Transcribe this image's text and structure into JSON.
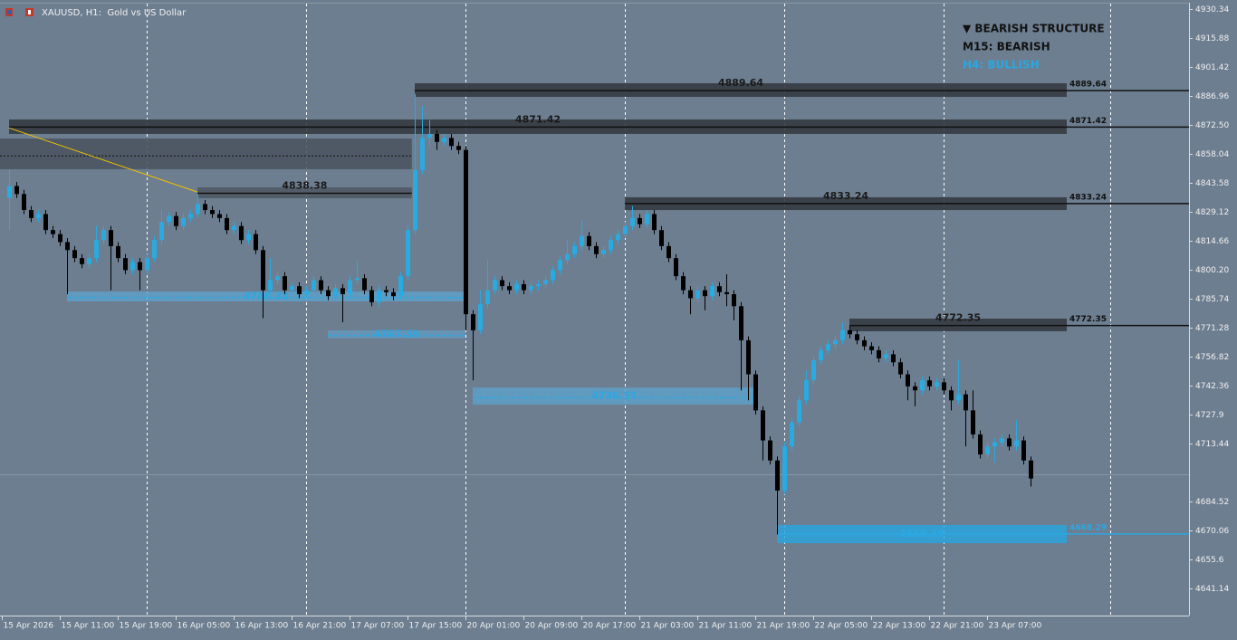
{
  "chart_data": {
    "type": "candlestick",
    "title": "XAUUSD, H1:  Gold vs US Dollar",
    "structure": [
      {
        "text": "▼ BEARISH STRUCTURE",
        "color": "#111111"
      },
      {
        "text": "M15: BEARISH",
        "color": "#111111"
      },
      {
        "text": "H4: BULLISH",
        "color": "#29a8e0"
      }
    ],
    "bull_color": "#29aae1",
    "bear_color": "#000000",
    "ylim": [
      4627.58,
      4933.05
    ],
    "yticks": [
      4930.34,
      4915.88,
      4901.42,
      4886.96,
      {
        "value": 4872.5,
        "label": "4872.50"
      },
      4858.04,
      4843.58,
      4829.12,
      4814.66,
      {
        "value": 4800.2,
        "label": "4800.20"
      },
      4785.74,
      4771.28,
      4756.82,
      4742.36,
      4727.9,
      4713.44,
      4684.52,
      4670.06,
      4655.6,
      4641.14
    ],
    "xlim": [
      -1.25,
      162.875
    ],
    "xticks": [
      {
        "value": -1,
        "label": "15 Apr 2026"
      },
      {
        "value": 7,
        "label": "15 Apr 11:00"
      },
      {
        "value": 15,
        "label": "15 Apr 19:00"
      },
      {
        "value": 23,
        "label": "16 Apr 05:00"
      },
      {
        "value": 31,
        "label": "16 Apr 13:00"
      },
      {
        "value": 39,
        "label": "16 Apr 21:00"
      },
      {
        "value": 47,
        "label": "17 Apr 07:00"
      },
      {
        "value": 55,
        "label": "17 Apr 15:00"
      },
      {
        "value": 63,
        "label": "20 Apr 01:00"
      },
      {
        "value": 71,
        "label": "20 Apr 09:00"
      },
      {
        "value": 79,
        "label": "20 Apr 17:00"
      },
      {
        "value": 87,
        "label": "21 Apr 03:00"
      },
      {
        "value": 95,
        "label": "21 Apr 11:00"
      },
      {
        "value": 103,
        "label": "21 Apr 19:00"
      },
      {
        "value": 111,
        "label": "22 Apr 05:00"
      },
      {
        "value": 119,
        "label": "22 Apr 13:00"
      },
      {
        "value": 127,
        "label": "22 Apr 21:00"
      },
      {
        "value": 135,
        "label": "23 Apr 07:00"
      }
    ],
    "vgrid": [
      19,
      41,
      63,
      85,
      107,
      129,
      152
    ],
    "current_price": 4698,
    "trendlines": [
      {
        "from": [
          0,
          4871
        ],
        "to": [
          26,
          4839
        ],
        "color": "#f2c200"
      }
    ],
    "zones": [
      {
        "price": 4857,
        "top": 4865.7,
        "bottom": 4850.4,
        "start": -1.25,
        "end": 55.6,
        "color": "#4a5561",
        "line": "dotted"
      },
      {
        "label": "4889.64",
        "price": 4889.64,
        "top": 4893.3,
        "bottom": 4886.5,
        "start": 56,
        "end": 146,
        "color": "#353b41",
        "extend": true
      },
      {
        "label": "4871.42",
        "price": 4871.42,
        "top": 4875.2,
        "bottom": 4868.0,
        "start": 0,
        "end": 146,
        "color": "#353b41",
        "extend": true
      },
      {
        "label": "4838.38",
        "price": 4838.38,
        "top": 4841.3,
        "bottom": 4835.9,
        "start": 26,
        "end": 55.6,
        "color": "#4f5a65"
      },
      {
        "label": "4833.24",
        "price": 4833.24,
        "top": 4836.4,
        "bottom": 4830.0,
        "start": 85,
        "end": 146,
        "color": "#353b41",
        "extend": true
      },
      {
        "label": "4772.35",
        "price": 4772.35,
        "top": 4775.8,
        "bottom": 4769.5,
        "start": 116,
        "end": 146,
        "color": "#353b41",
        "extend": true
      },
      {
        "label": "4786.33",
        "price": 4786.33,
        "top": 4789.3,
        "bottom": 4784.4,
        "start": 8,
        "end": 63,
        "color": "#5f9fc8",
        "blue": true
      },
      {
        "label": "4767.39",
        "price": 4767.39,
        "top": 4770.0,
        "bottom": 4766.0,
        "start": 44,
        "end": 63,
        "color": "#6696bb",
        "blue": true
      },
      {
        "label": "4736.33",
        "price": 4736.33,
        "top": 4741.4,
        "bottom": 4732.9,
        "start": 64,
        "end": 103,
        "color": "#5f9fc8",
        "blue": true
      },
      {
        "label": "4668.29",
        "price": 4668.29,
        "top": 4672.8,
        "bottom": 4663.7,
        "start": 106,
        "end": 146,
        "color": "#2ba3dc",
        "blue": true,
        "extend": true
      }
    ],
    "open": [
      4836,
      4842,
      4838,
      4830,
      4826,
      4828,
      4820,
      4818,
      4814,
      4810,
      4806,
      4803,
      4806,
      4815,
      4820,
      4812,
      4806,
      4800,
      4804,
      4800,
      4806,
      4815,
      4824,
      4827,
      4822,
      4826,
      4828,
      4833,
      4830,
      4828,
      4826,
      4820,
      4822,
      4815,
      4818,
      4810,
      4790,
      4795,
      4797,
      4790,
      4792,
      4788,
      4790,
      4795,
      4790,
      4787,
      4791,
      4788,
      4795,
      4796,
      4790,
      4784,
      4790,
      4789,
      4787,
      4797,
      4820,
      4850,
      4866,
      4868,
      4864,
      4866,
      4862,
      4860,
      4778,
      4770,
      4783,
      4790,
      4795,
      4792,
      4790,
      4793,
      4790,
      4792,
      4793,
      4795,
      4800,
      4805,
      4808,
      4812,
      4817,
      4812,
      4808,
      4810,
      4815,
      4818,
      4822,
      4826,
      4823,
      4828,
      4820,
      4812,
      4806,
      4797,
      4790,
      4786,
      4790,
      4787,
      4792,
      4789,
      4788,
      4782,
      4765,
      4748,
      4730,
      4715,
      4705,
      4690,
      4712,
      4724,
      4735,
      4745,
      4755,
      4760,
      4763,
      4765,
      4770,
      4768,
      4765,
      4762,
      4760,
      4756,
      4758,
      4754,
      4748,
      4742,
      4740,
      4745,
      4742,
      4744,
      4740,
      4735,
      4738,
      4730,
      4718,
      4708,
      4712,
      4714,
      4716,
      4712,
      4715,
      4705
    ],
    "high": [
      4850,
      4844,
      4840,
      4832,
      4830,
      4830,
      4822,
      4820,
      4816,
      4812,
      4808,
      4808,
      4822,
      4822,
      4822,
      4814,
      4808,
      4806,
      4806,
      4808,
      4817,
      4830,
      4829,
      4829,
      4828,
      4830,
      4838,
      4835,
      4832,
      4830,
      4828,
      4824,
      4824,
      4820,
      4820,
      4812,
      4806,
      4799,
      4799,
      4794,
      4794,
      4792,
      4797,
      4797,
      4792,
      4793,
      4793,
      4797,
      4805,
      4798,
      4792,
      4792,
      4792,
      4791,
      4799,
      4822,
      4888,
      4882,
      4875,
      4870,
      4868,
      4868,
      4864,
      4862,
      4780,
      4790,
      4805,
      4797,
      4797,
      4794,
      4795,
      4795,
      4794,
      4795,
      4797,
      4802,
      4807,
      4815,
      4814,
      4825,
      4819,
      4814,
      4812,
      4817,
      4820,
      4824,
      4832,
      4828,
      4830,
      4830,
      4822,
      4814,
      4808,
      4799,
      4792,
      4792,
      4792,
      4794,
      4794,
      4798,
      4790,
      4784,
      4767,
      4750,
      4732,
      4717,
      4707,
      4714,
      4726,
      4737,
      4750,
      4757,
      4762,
      4765,
      4767,
      4774,
      4772,
      4770,
      4767,
      4764,
      4762,
      4760,
      4760,
      4756,
      4750,
      4744,
      4747,
      4747,
      4746,
      4746,
      4742,
      4755,
      4740,
      4740,
      4720,
      4714,
      4716,
      4718,
      4718,
      4725,
      4717,
      4707
    ],
    "low": [
      4820,
      4836,
      4828,
      4824,
      4824,
      4818,
      4816,
      4812,
      4788,
      4804,
      4801,
      4801,
      4804,
      4813,
      4790,
      4804,
      4798,
      4798,
      4790,
      4798,
      4804,
      4813,
      4822,
      4820,
      4820,
      4824,
      4826,
      4828,
      4826,
      4824,
      4818,
      4818,
      4813,
      4813,
      4808,
      4776,
      4788,
      4793,
      4788,
      4788,
      4786,
      4786,
      4788,
      4788,
      4785,
      4785,
      4774,
      4786,
      4793,
      4788,
      4782,
      4782,
      4787,
      4785,
      4785,
      4795,
      4818,
      4848,
      4862,
      4860,
      4862,
      4860,
      4858,
      4770,
      4745,
      4768,
      4781,
      4788,
      4790,
      4788,
      4788,
      4788,
      4788,
      4790,
      4791,
      4793,
      4798,
      4803,
      4806,
      4810,
      4810,
      4806,
      4806,
      4808,
      4813,
      4816,
      4820,
      4821,
      4821,
      4818,
      4810,
      4804,
      4795,
      4788,
      4778,
      4784,
      4780,
      4785,
      4787,
      4782,
      4775,
      4740,
      4735,
      4728,
      4705,
      4703,
      4668,
      4688,
      4710,
      4722,
      4733,
      4743,
      4753,
      4758,
      4761,
      4763,
      4766,
      4763,
      4760,
      4758,
      4754,
      4754,
      4752,
      4746,
      4735,
      4732,
      4738,
      4740,
      4740,
      4738,
      4730,
      4733,
      4712,
      4716,
      4706,
      4706,
      4704,
      4712,
      4710,
      4710,
      4703,
      4692
    ],
    "close": [
      4842,
      4838,
      4830,
      4826,
      4828,
      4820,
      4818,
      4814,
      4810,
      4806,
      4803,
      4806,
      4815,
      4820,
      4812,
      4806,
      4800,
      4804,
      4800,
      4806,
      4815,
      4824,
      4827,
      4822,
      4826,
      4828,
      4833,
      4830,
      4828,
      4826,
      4820,
      4822,
      4815,
      4818,
      4810,
      4790,
      4795,
      4797,
      4790,
      4792,
      4788,
      4790,
      4795,
      4790,
      4787,
      4791,
      4788,
      4795,
      4796,
      4790,
      4784,
      4790,
      4789,
      4787,
      4797,
      4820,
      4850,
      4866,
      4868,
      4864,
      4866,
      4862,
      4860,
      4778,
      4770,
      4783,
      4790,
      4795,
      4792,
      4790,
      4793,
      4790,
      4792,
      4793,
      4795,
      4800,
      4805,
      4808,
      4812,
      4817,
      4812,
      4808,
      4810,
      4815,
      4818,
      4822,
      4826,
      4823,
      4828,
      4820,
      4812,
      4806,
      4797,
      4790,
      4786,
      4790,
      4787,
      4792,
      4789,
      4788,
      4782,
      4765,
      4748,
      4730,
      4715,
      4705,
      4690,
      4712,
      4724,
      4735,
      4745,
      4755,
      4760,
      4763,
      4765,
      4770,
      4768,
      4765,
      4762,
      4760,
      4756,
      4758,
      4754,
      4748,
      4742,
      4740,
      4745,
      4742,
      4744,
      4740,
      4735,
      4738,
      4730,
      4718,
      4708,
      4712,
      4714,
      4716,
      4712,
      4715,
      4705,
      4696
    ]
  }
}
